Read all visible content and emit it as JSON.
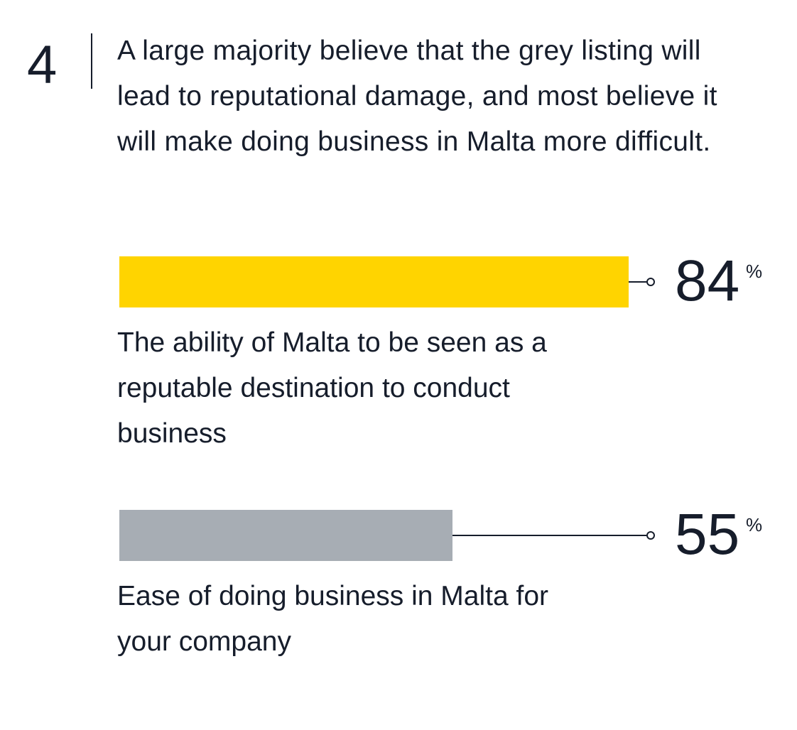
{
  "number": "4",
  "headline": "A large majority believe that the grey listing will lead to reputational damage, and most believe it will make doing business in Malta more difficult.",
  "chart_data": {
    "type": "bar",
    "orientation": "horizontal",
    "categories": [
      "The ability of Malta to be seen as a reputable destination to conduct business",
      "Ease of doing business in Malta for your company"
    ],
    "values": [
      84,
      55
    ],
    "value_labels": [
      "84",
      "55"
    ],
    "unit": "%",
    "colors": [
      "#FFD400",
      "#A7ADB4"
    ],
    "xlim": [
      0,
      100
    ]
  }
}
